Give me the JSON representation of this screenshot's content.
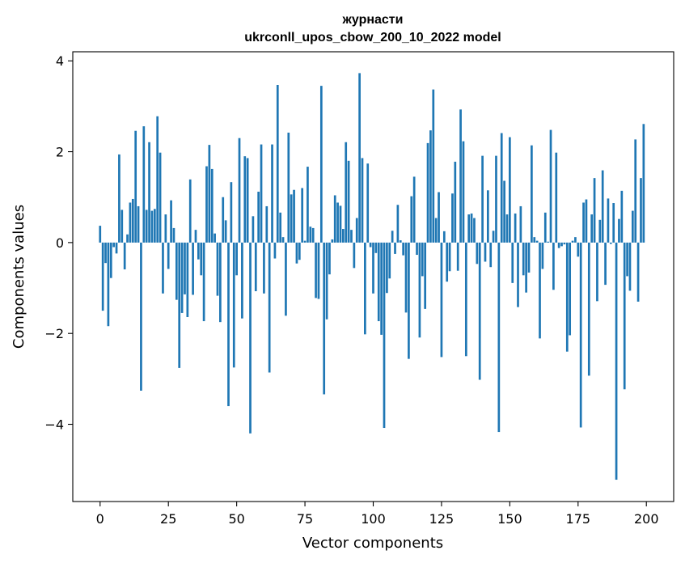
{
  "chart_data": {
    "type": "bar",
    "title_line1": "журнасти",
    "title_line2": "ukrconll_upos_cbow_200_10_2022 model",
    "xlabel": "Vector components",
    "ylabel": "Components values",
    "xlim": [
      -10,
      210
    ],
    "ylim": [
      -5.7,
      4.2
    ],
    "xticks": [
      0,
      25,
      50,
      75,
      100,
      125,
      150,
      175,
      200
    ],
    "xtick_labels": [
      "0",
      "25",
      "50",
      "75",
      "100",
      "125",
      "150",
      "175",
      "200"
    ],
    "yticks": [
      -4,
      -2,
      0,
      2,
      4
    ],
    "ytick_labels": [
      "−4",
      "−2",
      "0",
      "2",
      "4"
    ],
    "grid": false,
    "bar_color": "#1f77b4",
    "x": [
      0,
      1,
      2,
      3,
      4,
      5,
      6,
      7,
      8,
      9,
      10,
      11,
      12,
      13,
      14,
      15,
      16,
      17,
      18,
      19,
      20,
      21,
      22,
      23,
      24,
      25,
      26,
      27,
      28,
      29,
      30,
      31,
      32,
      33,
      34,
      35,
      36,
      37,
      38,
      39,
      40,
      41,
      42,
      43,
      44,
      45,
      46,
      47,
      48,
      49,
      50,
      51,
      52,
      53,
      54,
      55,
      56,
      57,
      58,
      59,
      60,
      61,
      62,
      63,
      64,
      65,
      66,
      67,
      68,
      69,
      70,
      71,
      72,
      73,
      74,
      75,
      76,
      77,
      78,
      79,
      80,
      81,
      82,
      83,
      84,
      85,
      86,
      87,
      88,
      89,
      90,
      91,
      92,
      93,
      94,
      95,
      96,
      97,
      98,
      99,
      100,
      101,
      102,
      103,
      104,
      105,
      106,
      107,
      108,
      109,
      110,
      111,
      112,
      113,
      114,
      115,
      116,
      117,
      118,
      119,
      120,
      121,
      122,
      123,
      124,
      125,
      126,
      127,
      128,
      129,
      130,
      131,
      132,
      133,
      134,
      135,
      136,
      137,
      138,
      139,
      140,
      141,
      142,
      143,
      144,
      145,
      146,
      147,
      148,
      149,
      150,
      151,
      152,
      153,
      154,
      155,
      156,
      157,
      158,
      159,
      160,
      161,
      162,
      163,
      164,
      165,
      166,
      167,
      168,
      169,
      170,
      171,
      172,
      173,
      174,
      175,
      176,
      177,
      178,
      179,
      180,
      181,
      182,
      183,
      184,
      185,
      186,
      187,
      188,
      189,
      190,
      191,
      192,
      193,
      194,
      195,
      196,
      197,
      198,
      199
    ],
    "values": [
      0.37,
      -1.5,
      -0.45,
      -1.84,
      -0.78,
      -0.1,
      -0.24,
      1.94,
      0.72,
      -0.59,
      0.18,
      0.88,
      0.96,
      2.46,
      0.8,
      -3.26,
      2.56,
      0.72,
      2.21,
      0.7,
      0.74,
      2.78,
      1.98,
      -1.12,
      0.62,
      -0.58,
      0.93,
      0.32,
      -1.26,
      -2.76,
      -1.55,
      -1.14,
      -1.64,
      1.39,
      -1.15,
      0.28,
      -0.37,
      -0.72,
      -1.73,
      1.68,
      2.15,
      1.62,
      0.2,
      -1.17,
      -1.75,
      1.0,
      0.49,
      -3.6,
      1.33,
      -2.75,
      -0.72,
      2.3,
      -1.67,
      1.9,
      1.86,
      -4.2,
      0.58,
      -1.07,
      1.12,
      2.16,
      -1.12,
      0.8,
      -2.86,
      2.16,
      -0.35,
      3.47,
      0.66,
      0.12,
      -1.61,
      2.42,
      1.06,
      1.16,
      -0.46,
      -0.38,
      1.2,
      0.04,
      1.67,
      0.35,
      0.32,
      -1.22,
      -1.24,
      3.45,
      -3.34,
      -1.69,
      -0.7,
      0.07,
      1.04,
      0.88,
      0.81,
      0.3,
      2.21,
      1.8,
      0.28,
      -0.56,
      0.54,
      3.73,
      1.86,
      -2.02,
      1.74,
      -0.1,
      -1.12,
      -0.23,
      -1.73,
      -2.03,
      -4.08,
      -1.11,
      -0.79,
      0.26,
      -0.25,
      0.83,
      0.05,
      -0.28,
      -1.54,
      -2.56,
      1.02,
      1.45,
      -0.27,
      -2.09,
      -0.74,
      -1.46,
      2.19,
      2.47,
      3.37,
      0.54,
      1.11,
      -2.52,
      0.25,
      -0.86,
      -0.63,
      1.08,
      1.78,
      -0.62,
      2.93,
      2.23,
      -2.5,
      0.62,
      0.64,
      0.54,
      -0.47,
      -3.02,
      1.91,
      -0.42,
      1.15,
      -0.54,
      0.26,
      1.91,
      -4.17,
      2.41,
      1.36,
      0.62,
      2.32,
      -0.89,
      0.64,
      -1.42,
      0.8,
      -0.72,
      -1.1,
      -0.66,
      2.14,
      0.12,
      0.04,
      -2.11,
      -0.58,
      0.66,
      0.02,
      2.48,
      -1.04,
      1.98,
      -0.12,
      -0.08,
      -0.04,
      -2.4,
      -2.04,
      0.04,
      0.12,
      -0.31,
      -4.07,
      0.88,
      0.95,
      -2.93,
      0.62,
      1.42,
      -1.29,
      0.5,
      1.59,
      -0.93,
      0.97,
      -0.03,
      0.87,
      -5.22,
      0.52,
      1.14,
      -3.23,
      -0.74,
      -1.06,
      0.7,
      2.27,
      -1.3,
      1.42,
      2.61
    ]
  }
}
